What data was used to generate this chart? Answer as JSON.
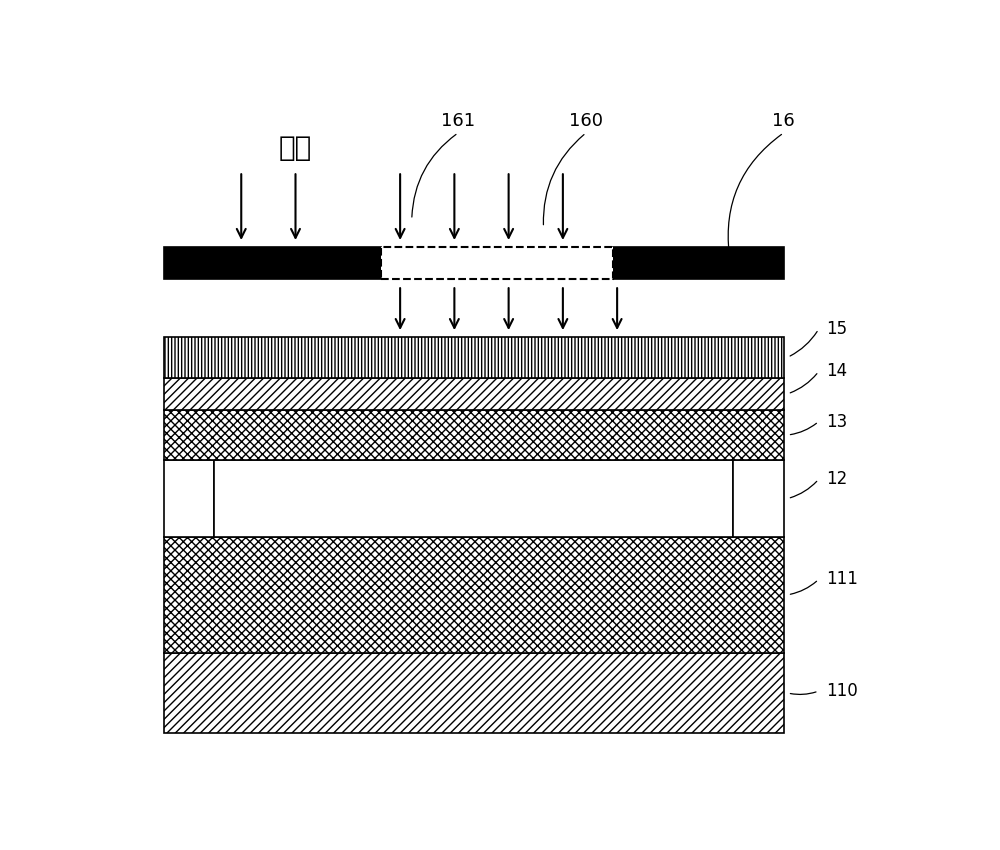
{
  "fig_width": 10.0,
  "fig_height": 8.5,
  "label_161": "161",
  "label_160": "160",
  "label_16": "16",
  "label_guangzhao": "光照",
  "label_15": "15",
  "label_14": "14",
  "label_13": "13",
  "label_12": "12",
  "label_111": "111",
  "label_110": "110"
}
